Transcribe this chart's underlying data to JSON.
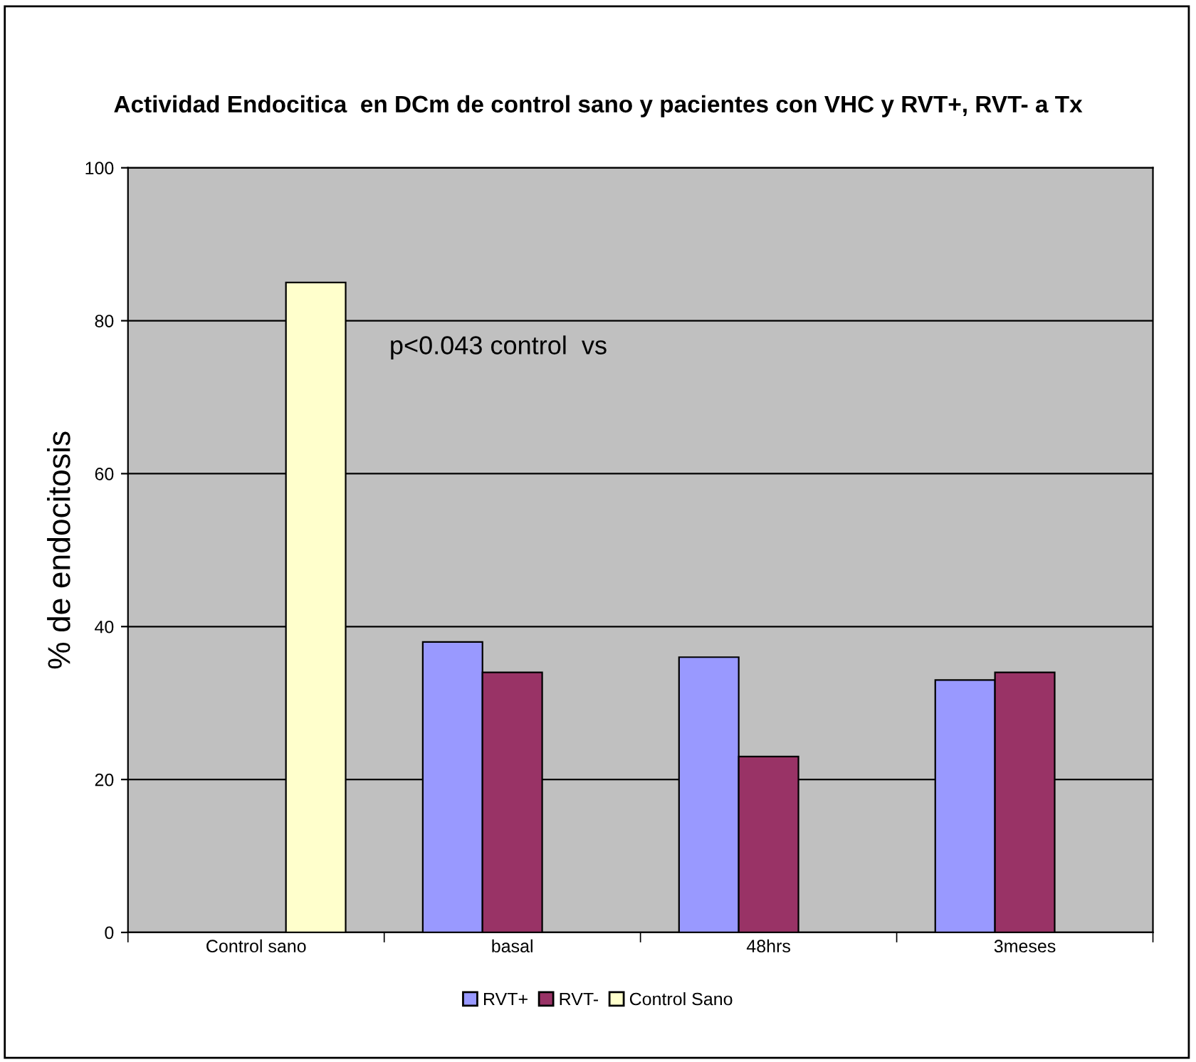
{
  "chart_data": {
    "type": "bar",
    "title": "Actividad Endocitica  en DCm de control sano y pacientes con VHC y RVT+, RVT- a Tx",
    "ylabel": "% de endocitosis",
    "categories": [
      "Control sano",
      "basal",
      "48hrs",
      "3meses"
    ],
    "series": [
      {
        "name": "RVT+",
        "color": "#9999ff",
        "values": [
          null,
          38,
          36,
          33
        ]
      },
      {
        "name": "RVT-",
        "color": "#993366",
        "values": [
          null,
          34,
          23,
          34
        ]
      },
      {
        "name": "Control Sano",
        "color": "#ffffcc",
        "values": [
          85,
          null,
          null,
          null
        ]
      }
    ],
    "ylim": [
      0,
      100
    ],
    "yticks": [
      0,
      20,
      40,
      60,
      80,
      100
    ],
    "grid": "y",
    "legend": "bottom",
    "annotations": [
      "p<0.043 control  vs"
    ]
  }
}
